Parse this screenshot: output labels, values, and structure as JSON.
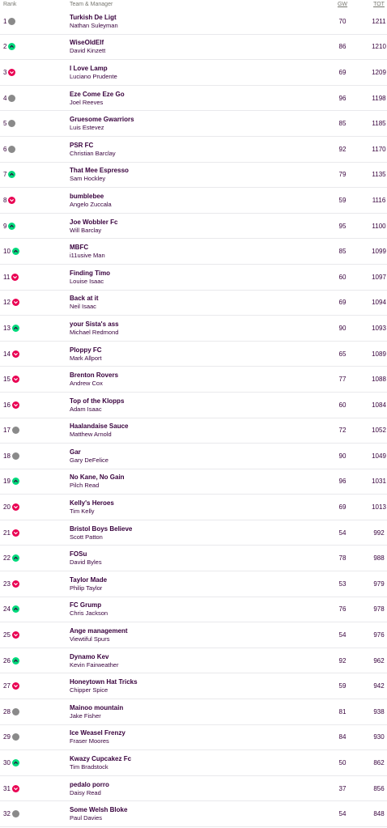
{
  "header": {
    "rank": "Rank",
    "team_manager": "Team & Manager",
    "gw": "GW",
    "tot": "TOT"
  },
  "colors": {
    "up": "#00d97b",
    "down": "#e90052",
    "same": "#8a8a8a",
    "text": "#37003c"
  },
  "rows": [
    {
      "rank": "1",
      "movement": "same",
      "team": "Turkish De Ligt",
      "manager": "Nathan Suleyman",
      "gw": "70",
      "tot": "1211"
    },
    {
      "rank": "2",
      "movement": "up",
      "team": "WiseOldElf",
      "manager": "David Kinzett",
      "gw": "86",
      "tot": "1210"
    },
    {
      "rank": "3",
      "movement": "down",
      "team": "I Love Lamp",
      "manager": "Luciano Prudente",
      "gw": "69",
      "tot": "1209"
    },
    {
      "rank": "4",
      "movement": "same",
      "team": "Eze Come Eze Go",
      "manager": "Joel Reeves",
      "gw": "96",
      "tot": "1198"
    },
    {
      "rank": "5",
      "movement": "same",
      "team": "Gruesome Gwarriors",
      "manager": "Luis Estevez",
      "gw": "85",
      "tot": "1185"
    },
    {
      "rank": "6",
      "movement": "same",
      "team": "PSR FC",
      "manager": "Christian Barclay",
      "gw": "92",
      "tot": "1170"
    },
    {
      "rank": "7",
      "movement": "up",
      "team": "That Mee Espresso",
      "manager": "Sam Hockley",
      "gw": "79",
      "tot": "1135"
    },
    {
      "rank": "8",
      "movement": "down",
      "team": "bumblebee",
      "manager": "Angelo Zuccala",
      "gw": "59",
      "tot": "1116"
    },
    {
      "rank": "9",
      "movement": "up",
      "team": "Joe Wobbler Fc",
      "manager": "Will Barclay",
      "gw": "95",
      "tot": "1100"
    },
    {
      "rank": "10",
      "movement": "up",
      "team": "MBFC",
      "manager": "i11usive Man",
      "gw": "85",
      "tot": "1099"
    },
    {
      "rank": "11",
      "movement": "down",
      "team": "Finding Timo",
      "manager": "Louise Isaac",
      "gw": "60",
      "tot": "1097"
    },
    {
      "rank": "12",
      "movement": "down",
      "team": "Back at it",
      "manager": "Neil Isaac",
      "gw": "69",
      "tot": "1094"
    },
    {
      "rank": "13",
      "movement": "up",
      "team": "your Sista's ass",
      "manager": "Michael Redmond",
      "gw": "90",
      "tot": "1093"
    },
    {
      "rank": "14",
      "movement": "down",
      "team": "Ploppy FC",
      "manager": "Mark Allport",
      "gw": "65",
      "tot": "1089"
    },
    {
      "rank": "15",
      "movement": "down",
      "team": "Brenton Rovers",
      "manager": "Andrew Cox",
      "gw": "77",
      "tot": "1088"
    },
    {
      "rank": "16",
      "movement": "down",
      "team": "Top of the Klopps",
      "manager": "Adam Isaac",
      "gw": "60",
      "tot": "1084"
    },
    {
      "rank": "17",
      "movement": "same",
      "team": "Haalandaise Sauce",
      "manager": "Matthew Arnold",
      "gw": "72",
      "tot": "1052"
    },
    {
      "rank": "18",
      "movement": "same",
      "team": "Gar",
      "manager": "Gary DeFelice",
      "gw": "90",
      "tot": "1049"
    },
    {
      "rank": "19",
      "movement": "up",
      "team": "No Kane, No Gain",
      "manager": "Pilch Read",
      "gw": "96",
      "tot": "1031"
    },
    {
      "rank": "20",
      "movement": "down",
      "team": "Kelly's Heroes",
      "manager": "Tim Kelly",
      "gw": "69",
      "tot": "1013"
    },
    {
      "rank": "21",
      "movement": "down",
      "team": "Bristol Boys Believe",
      "manager": "Scott Patton",
      "gw": "54",
      "tot": "992"
    },
    {
      "rank": "22",
      "movement": "up",
      "team": "FOSu",
      "manager": "David Byles",
      "gw": "78",
      "tot": "988"
    },
    {
      "rank": "23",
      "movement": "down",
      "team": "Taylor Made",
      "manager": "Philip Taylor",
      "gw": "53",
      "tot": "979"
    },
    {
      "rank": "24",
      "movement": "up",
      "team": "FC Grump",
      "manager": "Chris Jackson",
      "gw": "76",
      "tot": "978"
    },
    {
      "rank": "25",
      "movement": "down",
      "team": "Ange management",
      "manager": "Viewtiful Spurs",
      "gw": "54",
      "tot": "976"
    },
    {
      "rank": "26",
      "movement": "up",
      "team": "Dynamo Kev",
      "manager": "Kevin Fairweather",
      "gw": "92",
      "tot": "962"
    },
    {
      "rank": "27",
      "movement": "down",
      "team": "Honeytown Hat Tricks",
      "manager": "Chipper Spice",
      "gw": "59",
      "tot": "942"
    },
    {
      "rank": "28",
      "movement": "same",
      "team": "Mainoo mountain",
      "manager": "Jake Fisher",
      "gw": "81",
      "tot": "938"
    },
    {
      "rank": "29",
      "movement": "same",
      "team": "Ice Weasel Frenzy",
      "manager": "Fraser Moores",
      "gw": "84",
      "tot": "930"
    },
    {
      "rank": "30",
      "movement": "up",
      "team": "Kwazy Cupcakez Fc",
      "manager": "Tim Bradstock",
      "gw": "50",
      "tot": "862"
    },
    {
      "rank": "31",
      "movement": "down",
      "team": "pedalo porro",
      "manager": "Daisy Read",
      "gw": "37",
      "tot": "856"
    },
    {
      "rank": "32",
      "movement": "same",
      "team": "Some Welsh Bloke",
      "manager": "Paul Davies",
      "gw": "54",
      "tot": "848"
    }
  ]
}
